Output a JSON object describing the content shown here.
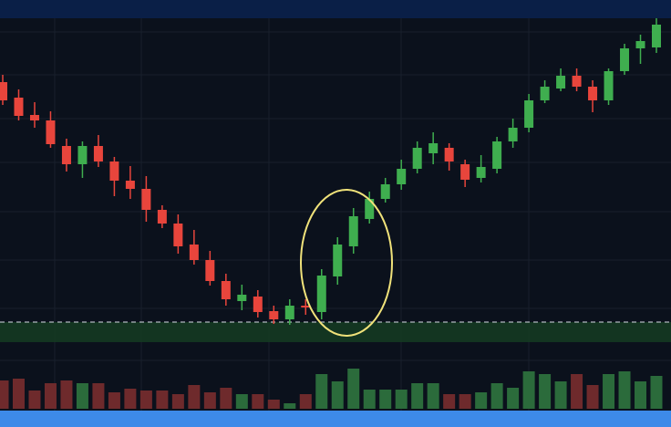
{
  "chart_data": {
    "type": "candlestick",
    "categories": [
      null,
      null,
      null,
      null,
      null,
      null,
      null,
      null,
      null,
      null,
      null,
      null,
      null,
      null,
      null,
      null,
      null,
      null,
      null,
      null,
      null,
      null,
      null,
      null,
      null,
      null,
      null,
      null,
      null,
      null,
      null,
      null,
      null,
      null,
      null,
      null,
      null,
      null,
      null,
      null,
      null,
      null
    ],
    "open": [
      360,
      343,
      324,
      318,
      290,
      270,
      290,
      273,
      252,
      243,
      220,
      205,
      182,
      165,
      142,
      120,
      125,
      109,
      100,
      115,
      108,
      147,
      180,
      210,
      232,
      248,
      265,
      282,
      288,
      270,
      255,
      265,
      295,
      310,
      340,
      353,
      367,
      355,
      340,
      372,
      397,
      398
    ],
    "high": [
      368,
      352,
      338,
      328,
      298,
      295,
      302,
      278,
      268,
      257,
      225,
      215,
      198,
      175,
      150,
      138,
      132,
      115,
      122,
      122,
      155,
      190,
      222,
      240,
      255,
      275,
      295,
      305,
      293,
      275,
      280,
      300,
      320,
      347,
      362,
      375,
      375,
      362,
      375,
      402,
      412,
      430
    ],
    "low": [
      335,
      318,
      310,
      288,
      262,
      255,
      267,
      235,
      232,
      207,
      200,
      172,
      160,
      137,
      115,
      110,
      102,
      95,
      94,
      105,
      100,
      138,
      172,
      205,
      228,
      242,
      260,
      270,
      263,
      245,
      250,
      260,
      288,
      305,
      337,
      350,
      350,
      327,
      335,
      368,
      380,
      392
    ],
    "close": [
      340,
      323,
      318,
      292,
      270,
      290,
      273,
      252,
      243,
      220,
      205,
      180,
      165,
      142,
      122,
      127,
      108,
      100,
      115,
      113,
      148,
      182,
      213,
      232,
      248,
      265,
      288,
      293,
      273,
      253,
      267,
      295,
      310,
      340,
      355,
      367,
      355,
      340,
      372,
      397,
      405,
      423
    ],
    "volume": [
      31,
      33,
      20,
      28,
      31,
      28,
      28,
      18,
      22,
      20,
      20,
      16,
      26,
      18,
      23,
      16,
      16,
      10,
      6,
      16,
      38,
      30,
      44,
      21,
      21,
      21,
      28,
      28,
      16,
      16,
      18,
      28,
      23,
      41,
      38,
      30,
      38,
      26,
      38,
      41,
      30,
      36
    ],
    "ylim": [
      0,
      430
    ],
    "vlim": [
      0,
      45
    ],
    "support_zone": [
      75,
      97
    ],
    "up_color": "#3fae4f",
    "down_color": "#e8453c",
    "volume_up_color": "#2b6b3b",
    "volume_down_color": "#6e2a2c"
  }
}
